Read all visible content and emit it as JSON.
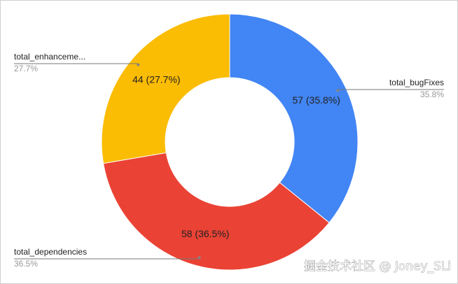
{
  "chart_data": {
    "type": "donut",
    "categories": [
      "total_bugFixes",
      "total_dependencies",
      "total_enhanceme..."
    ],
    "values": [
      57,
      58,
      44
    ],
    "value_labels": [
      "57 (35.8%)",
      "58 (36.5%)",
      "44 (27.7%)"
    ],
    "percent_labels": [
      "35.8%",
      "36.5%",
      "27.7%"
    ],
    "colors": [
      "#4285f4",
      "#ea4335",
      "#fbbc04"
    ]
  },
  "watermark": "掘金技术社区 @ Joney_SLi"
}
